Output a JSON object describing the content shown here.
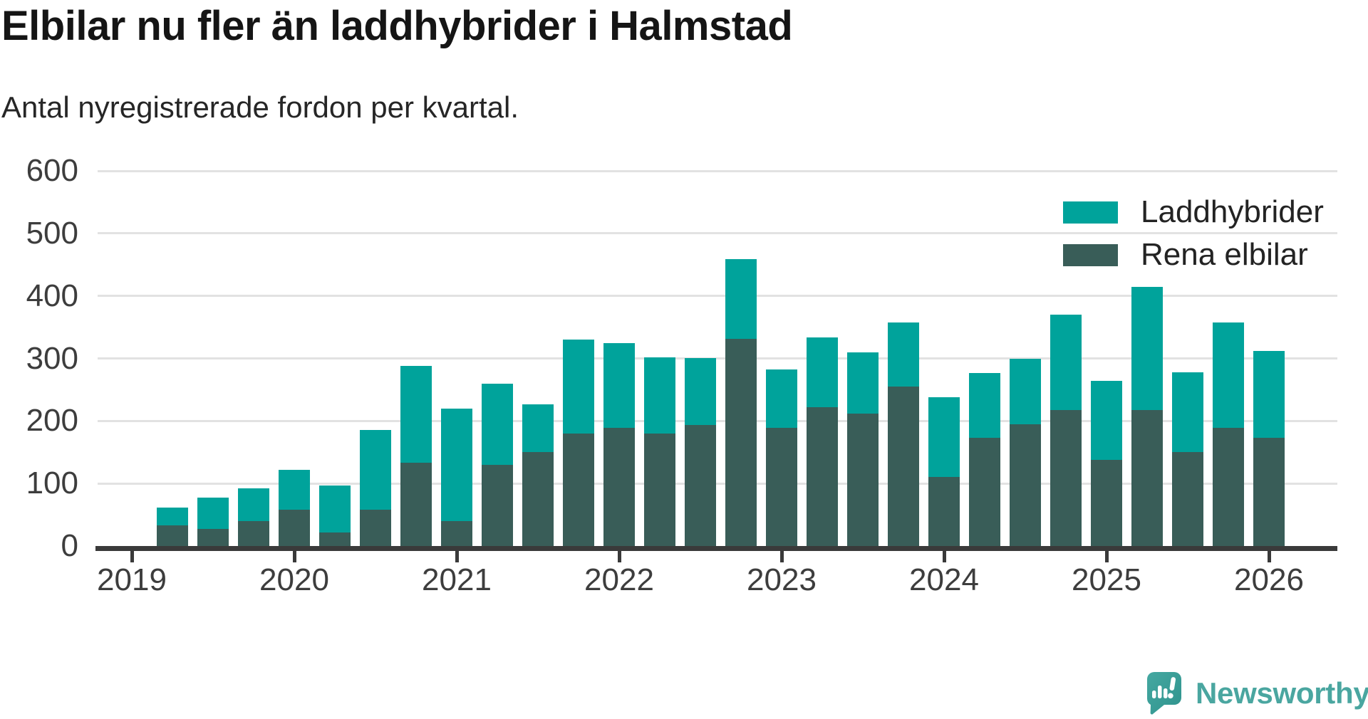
{
  "header": {
    "title": "Elbilar nu fler än laddhybrider i Halmstad",
    "subtitle": "Antal nyregistrerade fordon per kvartal."
  },
  "chart_data": {
    "type": "bar",
    "stacked": true,
    "title": "Elbilar nu fler än laddhybrider i Halmstad",
    "subtitle": "Antal nyregistrerade fordon per kvartal.",
    "categories": [
      "2019 Q1",
      "2019 Q2",
      "2019 Q3",
      "2019 Q4",
      "2020 Q1",
      "2020 Q2",
      "2020 Q3",
      "2020 Q4",
      "2021 Q1",
      "2021 Q2",
      "2021 Q3",
      "2021 Q4",
      "2022 Q1",
      "2022 Q2",
      "2022 Q3",
      "2022 Q4",
      "2023 Q1",
      "2023 Q2",
      "2023 Q3",
      "2023 Q4",
      "2024 Q1",
      "2024 Q2",
      "2024 Q3",
      "2024 Q4",
      "2025 Q1",
      "2025 Q2",
      "2025 Q3",
      "2025 Q4"
    ],
    "series": [
      {
        "name": "Laddhybrider",
        "color": "#00a39b",
        "values": [
          29,
          50,
          52,
          64,
          75,
          127,
          155,
          180,
          130,
          76,
          150,
          136,
          122,
          107,
          127,
          93,
          112,
          98,
          103,
          127,
          104,
          105,
          153,
          126,
          197,
          127,
          169,
          139
        ]
      },
      {
        "name": "Rena elbilar",
        "color": "#395d58",
        "values": [
          33,
          27,
          40,
          58,
          22,
          58,
          133,
          40,
          130,
          150,
          180,
          189,
          180,
          193,
          331,
          189,
          222,
          212,
          255,
          110,
          173,
          195,
          217,
          138,
          217,
          150,
          189,
          173
        ]
      }
    ],
    "stack_order": [
      "Rena elbilar",
      "Laddhybrider"
    ],
    "totals": [
      62,
      77,
      92,
      122,
      97,
      185,
      288,
      220,
      260,
      226,
      330,
      325,
      302,
      300,
      458,
      282,
      334,
      310,
      358,
      237,
      277,
      300,
      370,
      264,
      414,
      277,
      358,
      312
    ],
    "x_tick_labels": [
      "2019",
      "2020",
      "2021",
      "2022",
      "2023",
      "2024",
      "2025",
      "2026"
    ],
    "y_ticks": [
      "0",
      "100",
      "200",
      "300",
      "400",
      "500",
      "600"
    ],
    "ylim": [
      0,
      600
    ],
    "grid": "horizontal",
    "legend_position": "top-right",
    "colors": {
      "grid": "#e2e2e2",
      "axis": "#3a3a3a",
      "tick_label": "#3d3d3d"
    }
  },
  "brand": {
    "name": "Newsworthy"
  }
}
